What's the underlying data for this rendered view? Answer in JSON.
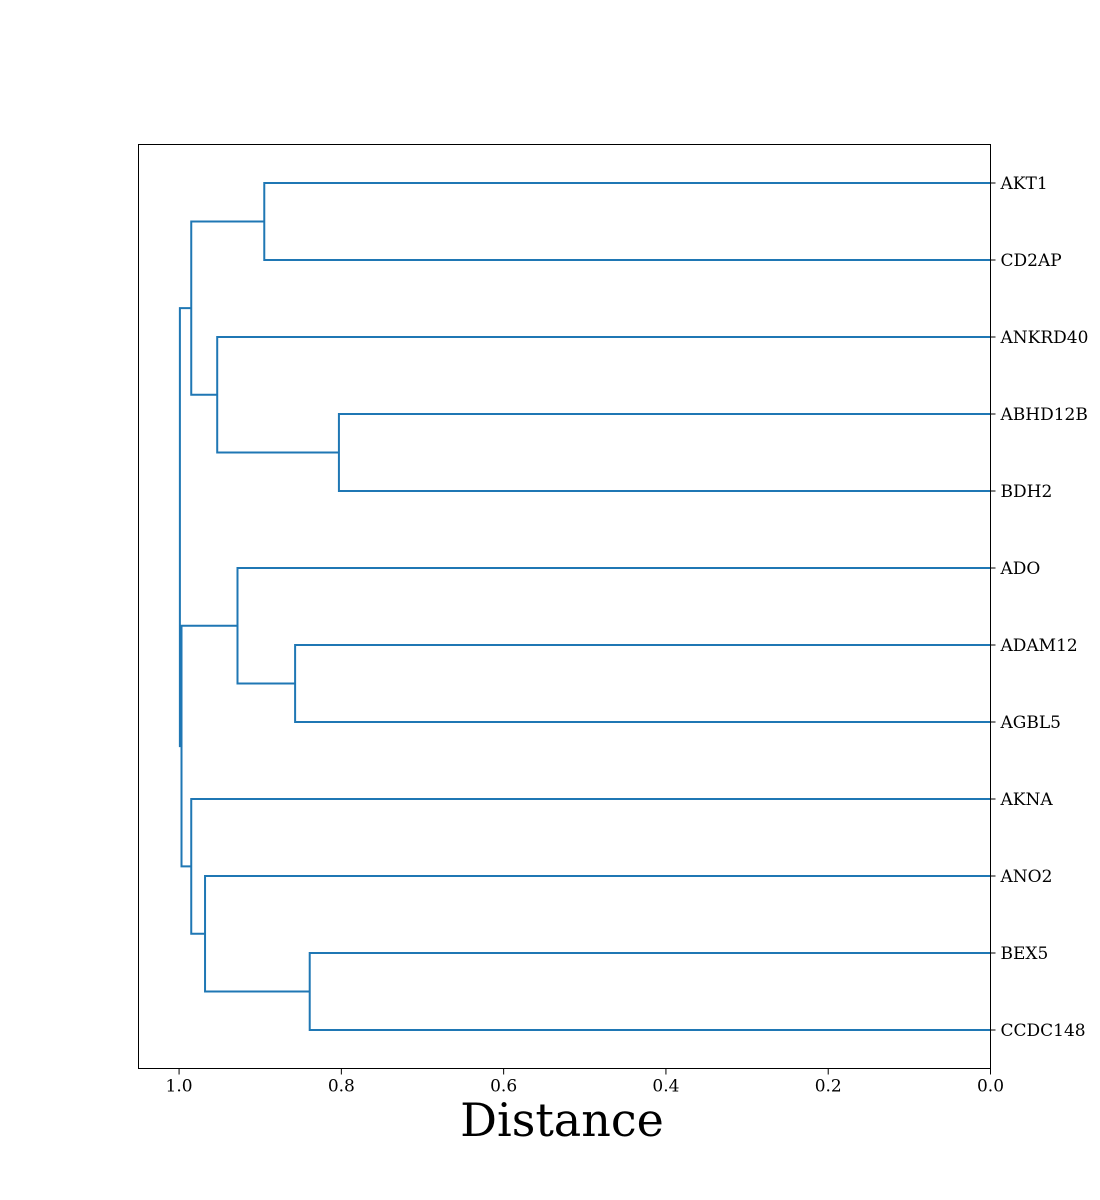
{
  "chart_data": {
    "type": "dendrogram",
    "orientation": "left",
    "xlabel": "Distance",
    "xlim": [
      1.05,
      0.0
    ],
    "x_ticks": [
      1.0,
      0.8,
      0.6,
      0.4,
      0.2,
      0.0
    ],
    "x_tick_labels": [
      "1.0",
      "0.8",
      "0.6",
      "0.4",
      "0.2",
      "0.0"
    ],
    "color": "#1f77b4",
    "leaves": [
      "AKT1",
      "CD2AP",
      "ANKRD40",
      "ABHD12B",
      "BDH2",
      "ADO",
      "ADAM12",
      "AGBL5",
      "AKNA",
      "ANO2",
      "BEX5",
      "CCDC148"
    ],
    "merges": [
      {
        "left": "AKT1",
        "right": "CD2AP",
        "distance": 0.895
      },
      {
        "left": "ABHD12B",
        "right": "BDH2",
        "distance": 0.803
      },
      {
        "left": "ANKRD40",
        "right": "ABHD12B+BDH2",
        "distance": 0.953
      },
      {
        "left": "AKT1+CD2AP",
        "right": "ANKRD40+ABHD12B+BDH2",
        "distance": 0.985
      },
      {
        "left": "ADAM12",
        "right": "AGBL5",
        "distance": 0.857
      },
      {
        "left": "ADO",
        "right": "ADAM12+AGBL5",
        "distance": 0.928
      },
      {
        "left": "BEX5",
        "right": "CCDC148",
        "distance": 0.839
      },
      {
        "left": "ANO2",
        "right": "BEX5+CCDC148",
        "distance": 0.968
      },
      {
        "left": "AKNA",
        "right": "ANO2+BEX5+CCDC148",
        "distance": 0.985
      },
      {
        "left": "ADO+ADAM12+AGBL5",
        "right": "AKNA+ANO2+BEX5+CCDC148",
        "distance": 0.997
      },
      {
        "left": "AKT1+CD2AP+ANKRD40+ABHD12B+BDH2",
        "right": "ADO+ADAM12+AGBL5+AKNA+ANO2+BEX5+CCDC148",
        "distance": 0.999
      }
    ]
  }
}
